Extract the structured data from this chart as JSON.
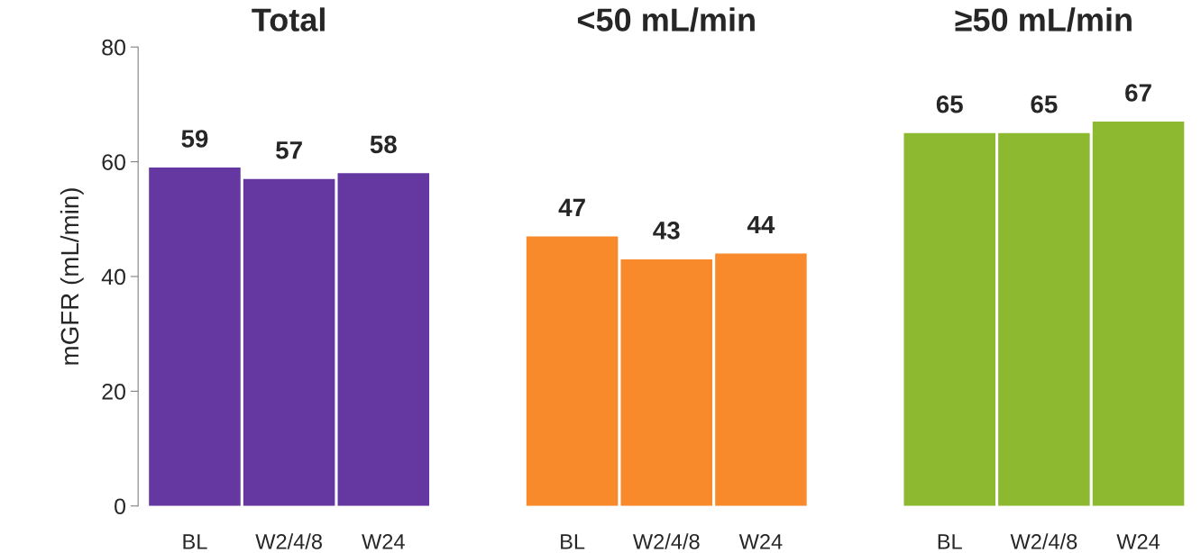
{
  "chart_data": {
    "type": "bar",
    "ylabel": "mGFR (mL/min)",
    "categories": [
      "BL",
      "W2/4/8",
      "W24",
      null,
      "BL",
      "W2/4/8",
      "W24",
      null,
      "BL",
      "W2/4/8",
      "W24"
    ],
    "values": [
      59,
      57,
      58,
      null,
      47,
      43,
      44,
      null,
      65,
      65,
      67
    ],
    "colors": [
      "#6438a0",
      "#6438a0",
      "#6438a0",
      null,
      "#f88a2c",
      "#f88a2c",
      "#f88a2c",
      null,
      "#8db930",
      "#8db930",
      "#8db930"
    ],
    "ylim": [
      0,
      80
    ],
    "yticks": [
      0,
      20,
      40,
      60,
      80
    ],
    "data_labels": true,
    "grid": false,
    "legend": false,
    "annotations": [
      "Total",
      "<50 mL/min",
      "≥50 mL/min"
    ]
  }
}
